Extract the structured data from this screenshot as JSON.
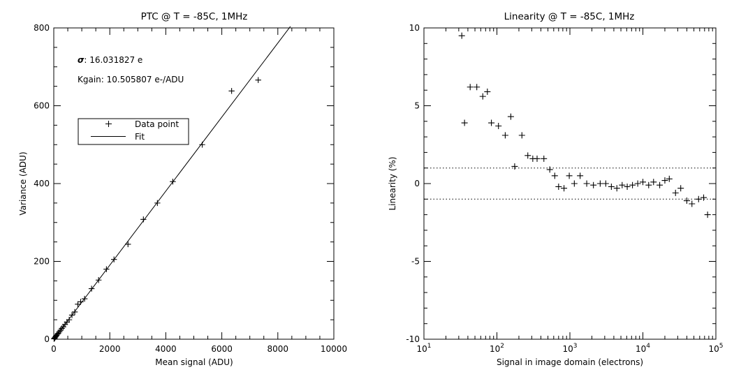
{
  "chart_data": [
    {
      "type": "scatter",
      "title": "PTC @ T = -85C, 1MHz",
      "xlabel": "Mean signal (ADU)",
      "ylabel": "Variance (ADU)",
      "xlim": [
        0,
        10000
      ],
      "ylim": [
        0,
        800
      ],
      "x_ticks": [
        "0",
        "2000",
        "4000",
        "6000",
        "8000",
        "10000"
      ],
      "y_ticks": [
        "0",
        "200",
        "400",
        "600",
        "800"
      ],
      "annotations": {
        "sigma_symbol": "σ",
        "sigma_text": ": 16.031827 e",
        "kgain_text": "Kgain: 10.505807 e-/ADU"
      },
      "legend": {
        "position": "upper-left",
        "entries": [
          {
            "label": "Data point",
            "marker": "plus"
          },
          {
            "label": "Fit",
            "marker": "line"
          }
        ]
      },
      "series": [
        {
          "name": "Data point",
          "marker": "plus",
          "points": [
            [
              10,
              1
            ],
            [
              25,
              2
            ],
            [
              40,
              4
            ],
            [
              60,
              6
            ],
            [
              80,
              8
            ],
            [
              100,
              10
            ],
            [
              130,
              13
            ],
            [
              160,
              15
            ],
            [
              200,
              19
            ],
            [
              240,
              23
            ],
            [
              290,
              28
            ],
            [
              340,
              32
            ],
            [
              400,
              38
            ],
            [
              470,
              44
            ],
            [
              550,
              50
            ],
            [
              650,
              62
            ],
            [
              750,
              70
            ],
            [
              860,
              90
            ],
            [
              960,
              96
            ],
            [
              1100,
              104
            ],
            [
              1350,
              130
            ],
            [
              1600,
              152
            ],
            [
              1880,
              180
            ],
            [
              2150,
              205
            ],
            [
              2650,
              244
            ],
            [
              3200,
              308
            ],
            [
              3700,
              350
            ],
            [
              4250,
              405
            ],
            [
              5300,
              500
            ],
            [
              6350,
              638
            ],
            [
              7300,
              666
            ]
          ]
        },
        {
          "name": "Fit",
          "type": "line",
          "points": [
            [
              0,
              0
            ],
            [
              8450,
              804
            ]
          ]
        }
      ]
    },
    {
      "type": "scatter",
      "title": "Linearity @ T = -85C, 1MHz",
      "xlabel": "Signal in image domain (electrons)",
      "ylabel": "Linearity (%)",
      "xscale": "log",
      "xlim": [
        10,
        100000
      ],
      "ylim": [
        -10,
        10
      ],
      "x_ticks": [
        {
          "base": "10",
          "exp": "1"
        },
        {
          "base": "10",
          "exp": "2"
        },
        {
          "base": "10",
          "exp": "3"
        },
        {
          "base": "10",
          "exp": "4"
        },
        {
          "base": "10",
          "exp": "5"
        }
      ],
      "y_ticks": [
        "10",
        "5",
        "0",
        "-5",
        "-10"
      ],
      "reference_lines": [
        1,
        -1
      ],
      "series": [
        {
          "name": "",
          "marker": "plus",
          "points": [
            [
              33,
              9.5
            ],
            [
              36,
              3.9
            ],
            [
              43,
              6.2
            ],
            [
              53,
              6.2
            ],
            [
              64,
              5.6
            ],
            [
              74,
              5.9
            ],
            [
              84,
              3.9
            ],
            [
              105,
              3.7
            ],
            [
              130,
              3.1
            ],
            [
              155,
              4.3
            ],
            [
              175,
              1.1
            ],
            [
              220,
              3.1
            ],
            [
              265,
              1.8
            ],
            [
              310,
              1.6
            ],
            [
              355,
              1.6
            ],
            [
              440,
              1.6
            ],
            [
              530,
              0.9
            ],
            [
              620,
              0.5
            ],
            [
              700,
              -0.2
            ],
            [
              830,
              -0.3
            ],
            [
              980,
              0.5
            ],
            [
              1150,
              0.0
            ],
            [
              1380,
              0.5
            ],
            [
              1700,
              0.0
            ],
            [
              2100,
              -0.1
            ],
            [
              2600,
              0.0
            ],
            [
              3100,
              0.0
            ],
            [
              3700,
              -0.2
            ],
            [
              4400,
              -0.3
            ],
            [
              5200,
              -0.1
            ],
            [
              6100,
              -0.2
            ],
            [
              7200,
              -0.1
            ],
            [
              8500,
              0.0
            ],
            [
              10000,
              0.1
            ],
            [
              12000,
              -0.1
            ],
            [
              14000,
              0.1
            ],
            [
              17000,
              -0.1
            ],
            [
              20000,
              0.2
            ],
            [
              23000,
              0.3
            ],
            [
              28000,
              -0.6
            ],
            [
              33000,
              -0.3
            ],
            [
              40000,
              -1.1
            ],
            [
              47000,
              -1.3
            ],
            [
              58000,
              -1.0
            ],
            [
              68000,
              -0.9
            ],
            [
              77000,
              -2.0
            ]
          ]
        }
      ]
    }
  ]
}
